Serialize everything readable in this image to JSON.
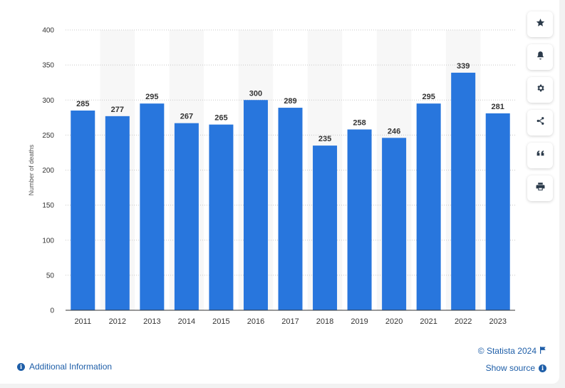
{
  "chart_data": {
    "type": "bar",
    "categories": [
      "2011",
      "2012",
      "2013",
      "2014",
      "2015",
      "2016",
      "2017",
      "2018",
      "2019",
      "2020",
      "2021",
      "2022",
      "2023"
    ],
    "values": [
      285,
      277,
      295,
      267,
      265,
      300,
      289,
      235,
      258,
      246,
      295,
      339,
      281
    ],
    "ylabel": "Number of deaths",
    "xlabel": "",
    "ylim": [
      0,
      400
    ],
    "yticks": [
      0,
      50,
      100,
      150,
      200,
      250,
      300,
      350,
      400
    ],
    "grid": true,
    "bar_color": "#2876dd",
    "alt_band_color": "#f7f7f7"
  },
  "toolbar": {
    "buttons": [
      {
        "name": "favorite-button",
        "icon": "star-icon"
      },
      {
        "name": "notification-button",
        "icon": "bell-icon"
      },
      {
        "name": "settings-button",
        "icon": "gear-icon"
      },
      {
        "name": "share-button",
        "icon": "share-icon"
      },
      {
        "name": "cite-button",
        "icon": "quote-icon"
      },
      {
        "name": "print-button",
        "icon": "print-icon"
      }
    ]
  },
  "footer": {
    "credit": "© Statista 2024",
    "show_source": "Show source",
    "additional_info": "Additional Information"
  },
  "colors": {
    "link": "#1e5ea8",
    "bar": "#2876dd"
  }
}
